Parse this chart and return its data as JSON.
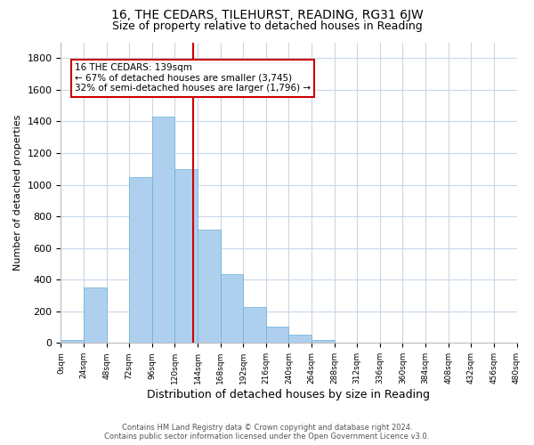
{
  "title": "16, THE CEDARS, TILEHURST, READING, RG31 6JW",
  "subtitle": "Size of property relative to detached houses in Reading",
  "xlabel": "Distribution of detached houses by size in Reading",
  "ylabel": "Number of detached properties",
  "footnote1": "Contains HM Land Registry data © Crown copyright and database right 2024.",
  "footnote2": "Contains public sector information licensed under the Open Government Licence v3.0.",
  "bar_edges": [
    0,
    24,
    48,
    72,
    96,
    120,
    144,
    168,
    192,
    216,
    240,
    264,
    288,
    312,
    336,
    360,
    384,
    408,
    432,
    456,
    480
  ],
  "bar_heights": [
    20,
    350,
    0,
    1050,
    1430,
    1100,
    715,
    435,
    225,
    105,
    55,
    20,
    0,
    0,
    0,
    0,
    0,
    0,
    0,
    0
  ],
  "bar_color": "#aed0ee",
  "bar_edgecolor": "#6aaed6",
  "grid_color": "#c8d8e8",
  "vline_x": 139,
  "vline_color": "#cc0000",
  "annotation_title": "16 THE CEDARS: 139sqm",
  "annotation_line1": "← 67% of detached houses are smaller (3,745)",
  "annotation_line2": "32% of semi-detached houses are larger (1,796) →",
  "annotation_box_edgecolor": "#cc0000",
  "tick_labels": [
    "0sqm",
    "24sqm",
    "48sqm",
    "72sqm",
    "96sqm",
    "120sqm",
    "144sqm",
    "168sqm",
    "192sqm",
    "216sqm",
    "240sqm",
    "264sqm",
    "288sqm",
    "312sqm",
    "336sqm",
    "360sqm",
    "384sqm",
    "408sqm",
    "432sqm",
    "456sqm",
    "480sqm"
  ],
  "ylim": [
    0,
    1900
  ],
  "yticks": [
    0,
    200,
    400,
    600,
    800,
    1000,
    1200,
    1400,
    1600,
    1800
  ],
  "bg_color": "#ffffff",
  "plot_bg_color": "#ffffff"
}
